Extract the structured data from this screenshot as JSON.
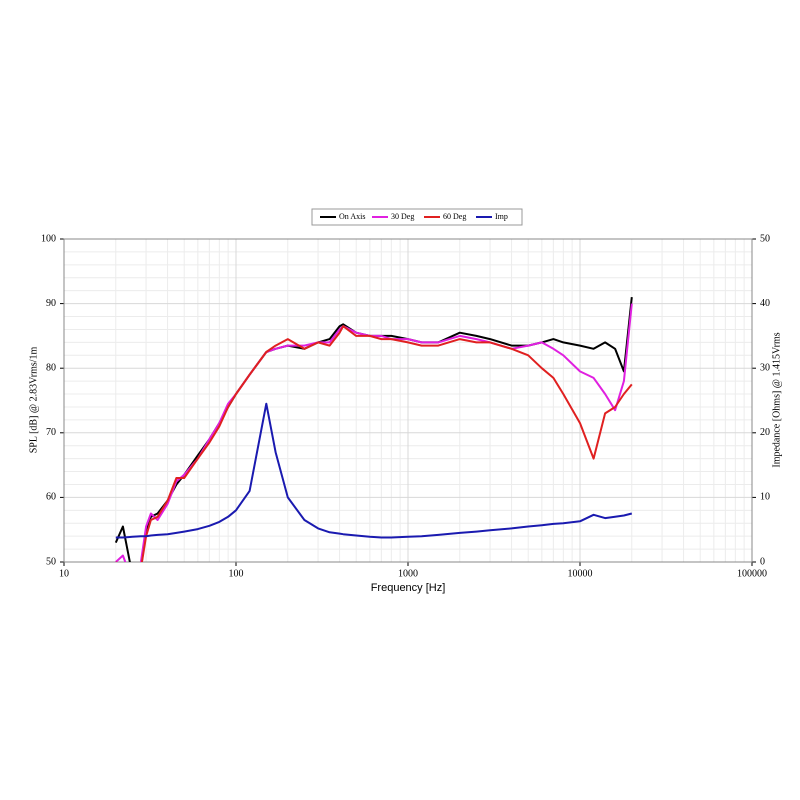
{
  "chart_data": {
    "type": "line",
    "xlabel": "Frequency [Hz]",
    "ylabel": "SPL [dB] @ 2.83Vrms/1m",
    "y2label": "Impedance [Ohms] @ 1.415Vrms",
    "xscale": "log",
    "xlim": [
      10,
      100000
    ],
    "xticks": [
      10,
      100,
      1000,
      10000,
      100000
    ],
    "ylim": [
      50,
      100
    ],
    "yticks": [
      50,
      60,
      70,
      80,
      90,
      100
    ],
    "y2lim": [
      0,
      50
    ],
    "y2ticks": [
      0,
      10,
      20,
      30,
      40,
      50
    ],
    "grid": true,
    "minor_grid": true,
    "legend": "top",
    "x": [
      20,
      22,
      25,
      28,
      30,
      32,
      35,
      40,
      45,
      50,
      60,
      70,
      80,
      90,
      100,
      120,
      150,
      170,
      200,
      250,
      300,
      350,
      400,
      420,
      500,
      600,
      700,
      800,
      1000,
      1200,
      1500,
      2000,
      2500,
      3000,
      4000,
      5000,
      6000,
      7000,
      8000,
      10000,
      12000,
      14000,
      16000,
      18000,
      20000
    ],
    "series": [
      {
        "name": "On Axis",
        "color": "#000000",
        "values": [
          53,
          55.5,
          48,
          49,
          55,
          57,
          57.5,
          59.5,
          62,
          63.5,
          66.5,
          69,
          71.5,
          74,
          76,
          79,
          82.5,
          83,
          83.5,
          83,
          84,
          84.5,
          86.5,
          86.8,
          85.5,
          85,
          85,
          85,
          84.5,
          84,
          84,
          85.5,
          85,
          84.5,
          83.5,
          83.5,
          84,
          84.5,
          84,
          83.5,
          83,
          84,
          83,
          79.5,
          91
        ]
      },
      {
        "name": "30 Deg",
        "color": "#e020e0",
        "values": [
          50,
          51,
          47,
          50,
          55.5,
          57.5,
          56.5,
          59,
          62.5,
          63.5,
          66,
          69,
          71.5,
          74.5,
          76,
          79,
          82.5,
          83,
          83.5,
          83.5,
          84,
          84,
          86,
          86.5,
          85.5,
          85,
          85,
          84.5,
          84.5,
          84,
          84,
          85,
          84.5,
          84,
          83,
          83.5,
          84,
          83,
          82,
          79.5,
          78.5,
          76,
          73.5,
          78,
          90
        ]
      },
      {
        "name": "60 Deg",
        "color": "#e02020",
        "values": [
          50,
          49,
          46,
          49,
          54,
          56.5,
          57,
          59.5,
          63,
          63,
          66,
          68.5,
          71,
          74,
          76,
          79,
          82.5,
          83.5,
          84.5,
          83,
          84,
          83.5,
          85.5,
          86.5,
          85,
          85,
          84.5,
          84.5,
          84,
          83.5,
          83.5,
          84.5,
          84,
          84,
          83,
          82,
          80,
          78.5,
          76,
          71.5,
          66,
          73,
          74,
          76,
          77.5
        ]
      },
      {
        "name": "Imp",
        "color": "#1a1ab0",
        "axis": "y2",
        "values": [
          3.8,
          3.8,
          3.9,
          4,
          4,
          4.1,
          4.2,
          4.3,
          4.5,
          4.7,
          5.1,
          5.6,
          6.2,
          7,
          8,
          11,
          24.5,
          17,
          10,
          6.5,
          5.2,
          4.6,
          4.4,
          4.3,
          4.1,
          3.9,
          3.8,
          3.8,
          3.9,
          4,
          4.2,
          4.5,
          4.7,
          4.9,
          5.2,
          5.5,
          5.7,
          5.9,
          6,
          6.3,
          7.3,
          6.8,
          7,
          7.2,
          7.5
        ]
      }
    ]
  }
}
